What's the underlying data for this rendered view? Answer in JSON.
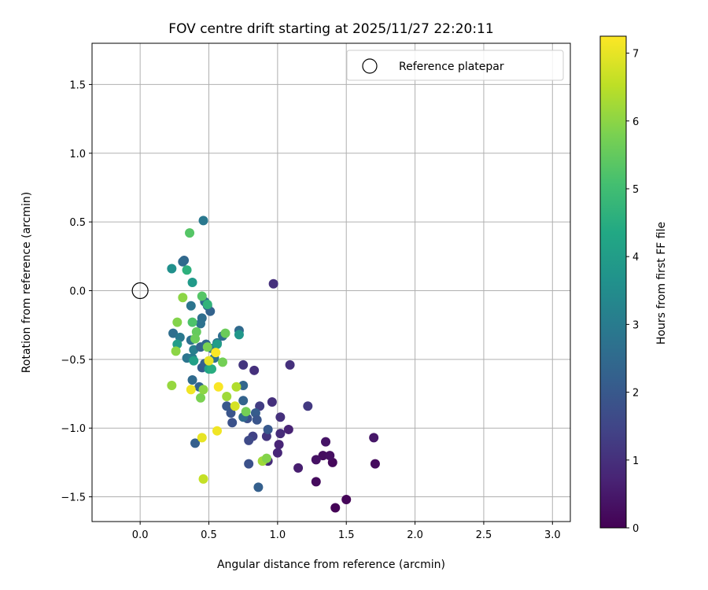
{
  "chart_data": {
    "type": "scatter",
    "title": "FOV centre drift starting at 2025/11/27 22:20:11",
    "xlabel": "Angular distance from reference (arcmin)",
    "ylabel": "Rotation from reference (arcmin)",
    "xlim": [
      -0.35,
      3.13
    ],
    "ylim": [
      -1.68,
      1.8
    ],
    "xticks": [
      0.0,
      0.5,
      1.0,
      1.5,
      2.0,
      2.5,
      3.0
    ],
    "xtick_labels": [
      "0.0",
      "0.5",
      "1.0",
      "1.5",
      "2.0",
      "2.5",
      "3.0"
    ],
    "yticks": [
      -1.5,
      -1.0,
      -0.5,
      0.0,
      0.5,
      1.0,
      1.5
    ],
    "ytick_labels": [
      "−1.5",
      "−1.0",
      "−0.5",
      "0.0",
      "0.5",
      "1.0",
      "1.5"
    ],
    "grid": true,
    "legend": {
      "position": "top-right",
      "entries": [
        "Reference platepar"
      ]
    },
    "reference_point": {
      "x": 0.0,
      "y": 0.0,
      "label": "Reference platepar"
    },
    "colorbar": {
      "label": "Hours from first FF file",
      "colormap": "viridis",
      "range": [
        0,
        7.25
      ],
      "ticks": [
        0,
        1,
        2,
        3,
        4,
        5,
        6,
        7
      ],
      "tick_labels": [
        "0",
        "1",
        "2",
        "3",
        "4",
        "5",
        "6",
        "7"
      ]
    },
    "points": [
      {
        "x": 1.42,
        "y": -1.58,
        "c": 0.05
      },
      {
        "x": 1.5,
        "y": -1.52,
        "c": 0.1
      },
      {
        "x": 1.28,
        "y": -1.39,
        "c": 0.2
      },
      {
        "x": 1.4,
        "y": -1.25,
        "c": 0.15
      },
      {
        "x": 1.33,
        "y": -1.2,
        "c": 0.25
      },
      {
        "x": 1.38,
        "y": -1.2,
        "c": 0.3
      },
      {
        "x": 1.28,
        "y": -1.23,
        "c": 0.35
      },
      {
        "x": 1.35,
        "y": -1.1,
        "c": 0.4
      },
      {
        "x": 1.7,
        "y": -1.07,
        "c": 0.45
      },
      {
        "x": 1.71,
        "y": -1.26,
        "c": 0.2
      },
      {
        "x": 1.15,
        "y": -1.29,
        "c": 0.6
      },
      {
        "x": 1.08,
        "y": -1.01,
        "c": 0.7
      },
      {
        "x": 1.01,
        "y": -1.12,
        "c": 0.75
      },
      {
        "x": 1.0,
        "y": -1.18,
        "c": 0.8
      },
      {
        "x": 1.02,
        "y": -1.04,
        "c": 0.9
      },
      {
        "x": 1.02,
        "y": -0.92,
        "c": 1.0
      },
      {
        "x": 0.96,
        "y": -0.81,
        "c": 1.0
      },
      {
        "x": 0.92,
        "y": -1.06,
        "c": 1.1
      },
      {
        "x": 0.93,
        "y": -1.24,
        "c": 0.9
      },
      {
        "x": 0.97,
        "y": 0.05,
        "c": 1.0
      },
      {
        "x": 1.09,
        "y": -0.54,
        "c": 1.0
      },
      {
        "x": 1.22,
        "y": -0.84,
        "c": 1.2
      },
      {
        "x": 0.83,
        "y": -0.58,
        "c": 1.0
      },
      {
        "x": 0.75,
        "y": -0.54,
        "c": 1.1
      },
      {
        "x": 0.87,
        "y": -0.84,
        "c": 1.3
      },
      {
        "x": 0.82,
        "y": -1.06,
        "c": 1.4
      },
      {
        "x": 0.79,
        "y": -1.09,
        "c": 1.6
      },
      {
        "x": 0.79,
        "y": -1.26,
        "c": 1.8
      },
      {
        "x": 0.86,
        "y": -1.43,
        "c": 2.2
      },
      {
        "x": 0.93,
        "y": -1.01,
        "c": 2.0
      },
      {
        "x": 0.84,
        "y": -0.89,
        "c": 2.1
      },
      {
        "x": 0.85,
        "y": -0.94,
        "c": 1.9
      },
      {
        "x": 0.78,
        "y": -0.93,
        "c": 1.8
      },
      {
        "x": 0.75,
        "y": -0.92,
        "c": 2.5
      },
      {
        "x": 0.75,
        "y": -0.69,
        "c": 2.4
      },
      {
        "x": 0.75,
        "y": -0.8,
        "c": 2.3
      },
      {
        "x": 0.66,
        "y": -0.89,
        "c": 1.9
      },
      {
        "x": 0.67,
        "y": -0.96,
        "c": 1.8
      },
      {
        "x": 0.63,
        "y": -0.84,
        "c": 2.0
      },
      {
        "x": 0.72,
        "y": -0.29,
        "c": 2.5
      },
      {
        "x": 0.6,
        "y": -0.33,
        "c": 2.6
      },
      {
        "x": 0.56,
        "y": -0.38,
        "c": 2.8
      },
      {
        "x": 0.51,
        "y": -0.15,
        "c": 2.3
      },
      {
        "x": 0.49,
        "y": -0.11,
        "c": 2.4
      },
      {
        "x": 0.47,
        "y": -0.08,
        "c": 2.5
      },
      {
        "x": 0.45,
        "y": -0.2,
        "c": 2.6
      },
      {
        "x": 0.44,
        "y": -0.24,
        "c": 2.7
      },
      {
        "x": 0.46,
        "y": 0.51,
        "c": 2.9
      },
      {
        "x": 0.32,
        "y": 0.22,
        "c": 2.4
      },
      {
        "x": 0.31,
        "y": 0.21,
        "c": 2.5
      },
      {
        "x": 0.37,
        "y": -0.11,
        "c": 2.8
      },
      {
        "x": 0.37,
        "y": -0.36,
        "c": 2.7
      },
      {
        "x": 0.24,
        "y": -0.31,
        "c": 2.6
      },
      {
        "x": 0.29,
        "y": -0.34,
        "c": 2.9
      },
      {
        "x": 0.34,
        "y": -0.49,
        "c": 2.8
      },
      {
        "x": 0.38,
        "y": -0.49,
        "c": 3.0
      },
      {
        "x": 0.39,
        "y": -0.43,
        "c": 3.1
      },
      {
        "x": 0.44,
        "y": -0.41,
        "c": 2.3
      },
      {
        "x": 0.45,
        "y": -0.56,
        "c": 2.1
      },
      {
        "x": 0.47,
        "y": -0.53,
        "c": 2.2
      },
      {
        "x": 0.48,
        "y": -0.39,
        "c": 2.4
      },
      {
        "x": 0.52,
        "y": -0.42,
        "c": 2.6
      },
      {
        "x": 0.54,
        "y": -0.49,
        "c": 2.7
      },
      {
        "x": 0.38,
        "y": -0.65,
        "c": 2.5
      },
      {
        "x": 0.43,
        "y": -0.7,
        "c": 2.3
      },
      {
        "x": 0.4,
        "y": -1.11,
        "c": 2.2
      },
      {
        "x": 0.72,
        "y": -0.32,
        "c": 3.8
      },
      {
        "x": 0.5,
        "y": -0.57,
        "c": 4.2
      },
      {
        "x": 0.52,
        "y": -0.57,
        "c": 4.5
      },
      {
        "x": 0.56,
        "y": -0.39,
        "c": 4.0
      },
      {
        "x": 0.38,
        "y": 0.06,
        "c": 3.9
      },
      {
        "x": 0.34,
        "y": 0.15,
        "c": 4.6
      },
      {
        "x": 0.23,
        "y": 0.16,
        "c": 3.6
      },
      {
        "x": 0.27,
        "y": -0.39,
        "c": 4.0
      },
      {
        "x": 0.39,
        "y": -0.51,
        "c": 4.1
      },
      {
        "x": 0.36,
        "y": 0.42,
        "c": 5.3
      },
      {
        "x": 0.45,
        "y": -0.04,
        "c": 5.3
      },
      {
        "x": 0.49,
        "y": -0.1,
        "c": 4.7
      },
      {
        "x": 0.38,
        "y": -0.23,
        "c": 5.2
      },
      {
        "x": 0.41,
        "y": -0.3,
        "c": 5.5
      },
      {
        "x": 0.4,
        "y": -0.35,
        "c": 5.6
      },
      {
        "x": 0.49,
        "y": -0.41,
        "c": 5.8
      },
      {
        "x": 0.27,
        "y": -0.23,
        "c": 5.9
      },
      {
        "x": 0.31,
        "y": -0.05,
        "c": 6.0
      },
      {
        "x": 0.26,
        "y": -0.44,
        "c": 6.0
      },
      {
        "x": 0.6,
        "y": -0.52,
        "c": 5.7
      },
      {
        "x": 0.62,
        "y": -0.31,
        "c": 5.6
      },
      {
        "x": 0.23,
        "y": -0.69,
        "c": 6.1
      },
      {
        "x": 0.44,
        "y": -0.78,
        "c": 5.8
      },
      {
        "x": 0.46,
        "y": -0.72,
        "c": 6.0
      },
      {
        "x": 0.63,
        "y": -0.77,
        "c": 6.2
      },
      {
        "x": 0.77,
        "y": -0.88,
        "c": 5.7
      },
      {
        "x": 0.7,
        "y": -0.7,
        "c": 6.4
      },
      {
        "x": 0.89,
        "y": -1.24,
        "c": 6.2
      },
      {
        "x": 0.92,
        "y": -1.22,
        "c": 5.9
      },
      {
        "x": 0.46,
        "y": -1.37,
        "c": 6.6
      },
      {
        "x": 0.45,
        "y": -1.07,
        "c": 7.0
      },
      {
        "x": 0.56,
        "y": -1.02,
        "c": 7.1
      },
      {
        "x": 0.37,
        "y": -0.72,
        "c": 7.1
      },
      {
        "x": 0.57,
        "y": -0.7,
        "c": 7.2
      },
      {
        "x": 0.69,
        "y": -0.84,
        "c": 6.8
      },
      {
        "x": 0.5,
        "y": -0.51,
        "c": 7.0
      },
      {
        "x": 0.55,
        "y": -0.45,
        "c": 7.2
      }
    ]
  }
}
